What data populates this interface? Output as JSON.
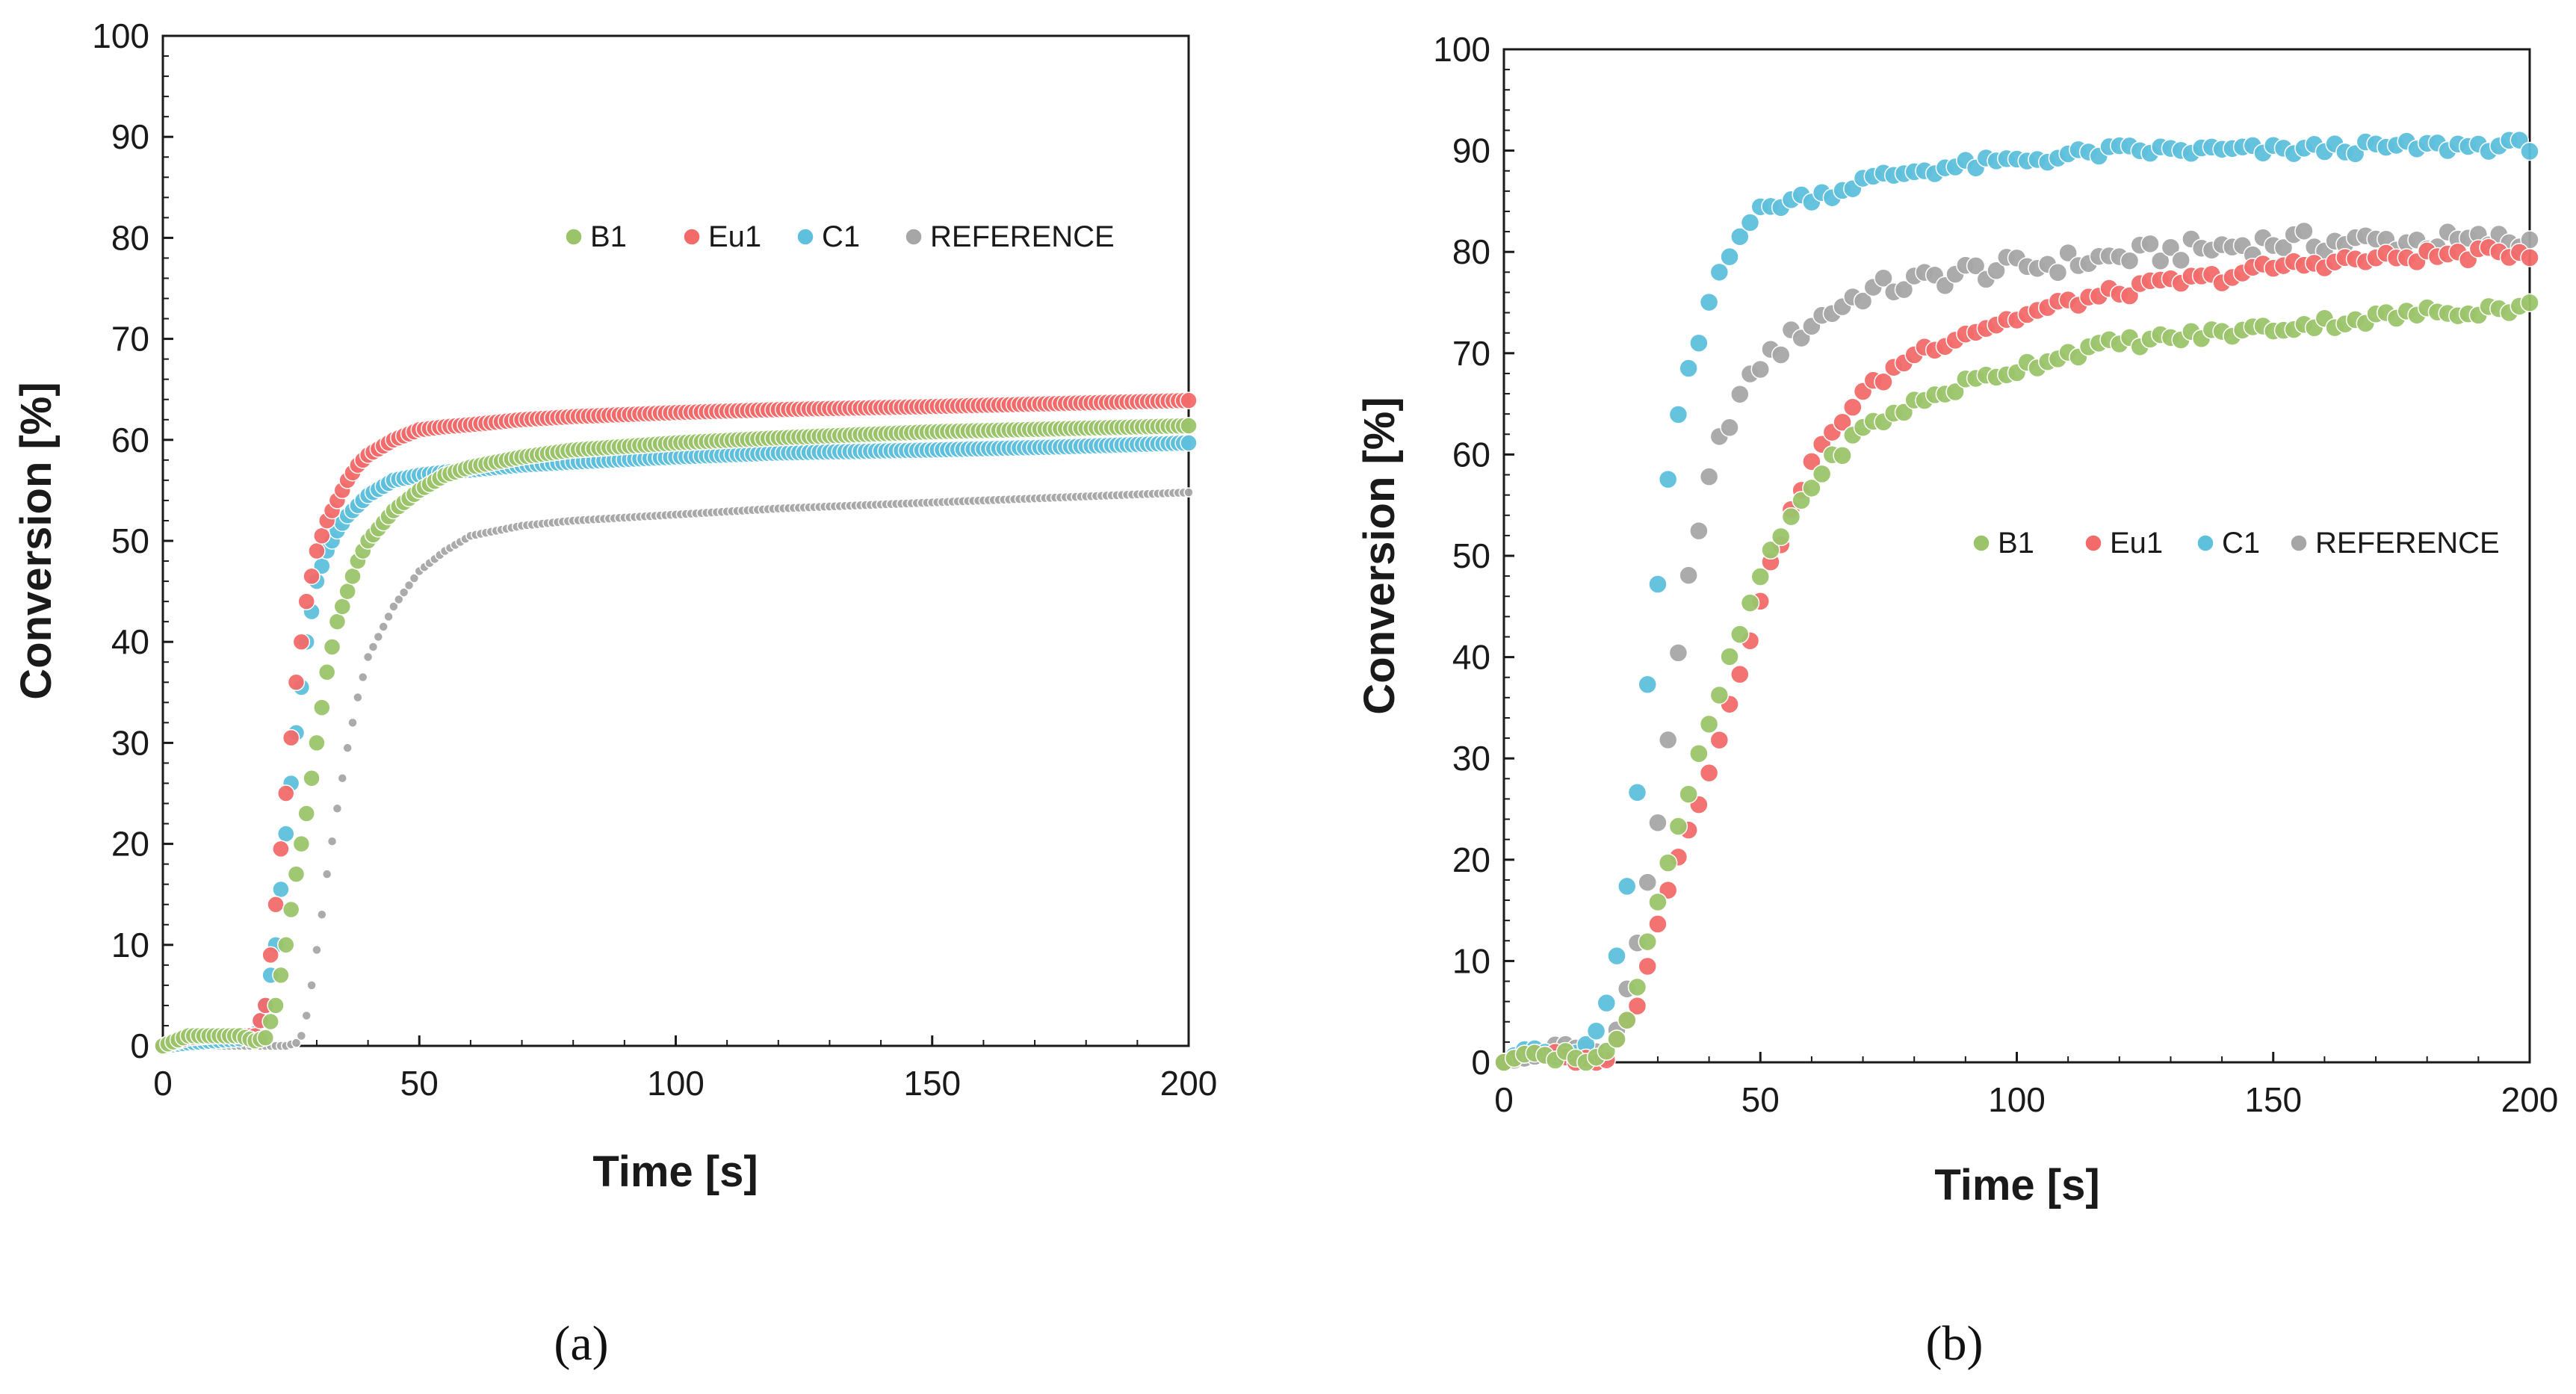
{
  "colors": {
    "B1": "#9bc46a",
    "Eu1": "#f26a6a",
    "C1": "#5ec0dc",
    "REFERENCE": "#a6a6a6",
    "axis": "#1a1a1a"
  },
  "chart_data": [
    {
      "type": "scatter",
      "panel_label": "(a)",
      "title": "",
      "xlabel": "Time [s]",
      "ylabel": "Conversion [%]",
      "xlim": [
        0,
        200
      ],
      "ylim": [
        0,
        100
      ],
      "xticks": [
        0,
        50,
        100,
        150,
        200
      ],
      "yticks": [
        0,
        10,
        20,
        30,
        40,
        50,
        60,
        70,
        80,
        90,
        100
      ],
      "x_tick_labels": [
        "0",
        "50",
        "100",
        "150",
        "200"
      ],
      "y_tick_labels": [
        "0",
        "10",
        "20",
        "30",
        "40",
        "50",
        "60",
        "70",
        "80",
        "90",
        "100"
      ],
      "legend": {
        "placement": "top-right",
        "entries": [
          "B1",
          "Eu1",
          "C1",
          "REFERENCE"
        ]
      },
      "series": [
        {
          "name": "B1",
          "x": [
            0,
            5,
            10,
            15,
            18,
            20,
            22,
            24,
            26,
            28,
            30,
            32,
            34,
            36,
            38,
            40,
            45,
            50,
            55,
            60,
            70,
            80,
            100,
            120,
            150,
            175,
            200
          ],
          "y": [
            0,
            1,
            1,
            1,
            0.5,
            0.8,
            4,
            10,
            17,
            23,
            30,
            37,
            42,
            45,
            48,
            50,
            53,
            55,
            56.5,
            57.3,
            58.3,
            59,
            59.7,
            60.2,
            60.8,
            61.1,
            61.4
          ]
        },
        {
          "name": "Eu1",
          "x": [
            0,
            5,
            10,
            15,
            18,
            20,
            22,
            24,
            26,
            28,
            30,
            32,
            34,
            36,
            38,
            40,
            45,
            50,
            55,
            60,
            70,
            80,
            100,
            120,
            150,
            175,
            200
          ],
          "y": [
            0,
            0.8,
            1,
            1,
            1,
            4,
            14,
            25,
            36,
            44,
            49,
            52,
            54,
            56,
            57.5,
            58.5,
            60,
            61,
            61.3,
            61.5,
            62,
            62.3,
            62.7,
            63,
            63.3,
            63.6,
            63.9
          ]
        },
        {
          "name": "C1",
          "x": [
            0,
            5,
            10,
            15,
            18,
            20,
            22,
            24,
            26,
            28,
            30,
            32,
            34,
            36,
            38,
            40,
            45,
            50,
            55,
            60,
            70,
            80,
            100,
            120,
            150,
            175,
            200
          ],
          "y": [
            0,
            0.3,
            0.5,
            0.7,
            1.2,
            4,
            10,
            21,
            31,
            40,
            46,
            49,
            51,
            52.5,
            53.5,
            54.5,
            56,
            56.5,
            56.8,
            57,
            57.5,
            57.8,
            58.3,
            58.7,
            59,
            59.3,
            59.7
          ]
        },
        {
          "name": "REFERENCE",
          "x": [
            0,
            5,
            10,
            15,
            20,
            24,
            26,
            27,
            28,
            29,
            30,
            31,
            32,
            34,
            36,
            38,
            40,
            45,
            50,
            55,
            60,
            70,
            80,
            100,
            120,
            150,
            175,
            200
          ],
          "y": [
            0,
            0,
            0,
            0,
            0,
            0,
            0.3,
            1,
            3,
            6,
            9.5,
            13,
            17,
            23.5,
            29.5,
            34.5,
            38.5,
            43.5,
            47,
            49,
            50.5,
            51.5,
            52,
            52.6,
            53.2,
            53.8,
            54.3,
            54.8
          ]
        }
      ]
    },
    {
      "type": "scatter",
      "panel_label": "(b)",
      "title": "",
      "xlabel": "Time [s]",
      "ylabel": "Conversion [%]",
      "xlim": [
        0,
        200
      ],
      "ylim": [
        0,
        100
      ],
      "xticks": [
        0,
        50,
        100,
        150,
        200
      ],
      "yticks": [
        0,
        10,
        20,
        30,
        40,
        50,
        60,
        70,
        80,
        90,
        100
      ],
      "x_tick_labels": [
        "0",
        "50",
        "100",
        "150",
        "200"
      ],
      "y_tick_labels": [
        "0",
        "10",
        "20",
        "30",
        "40",
        "50",
        "60",
        "70",
        "80",
        "90",
        "100"
      ],
      "legend": {
        "placement": "center-right",
        "entries": [
          "B1",
          "Eu1",
          "C1",
          "REFERENCE"
        ]
      },
      "series": [
        {
          "name": "B1",
          "x": [
            0,
            5,
            10,
            15,
            18,
            20,
            22,
            24,
            26,
            28,
            30,
            32,
            35,
            38,
            40,
            43,
            45,
            48,
            50,
            55,
            60,
            65,
            70,
            80,
            90,
            100,
            110,
            120,
            130,
            140,
            150,
            160,
            170,
            180,
            190,
            200
          ],
          "y": [
            0,
            1,
            0.5,
            0.5,
            0.5,
            1,
            2,
            4,
            8,
            12,
            16,
            20,
            25,
            30,
            33,
            38,
            41,
            45,
            48,
            53,
            57,
            60,
            62.5,
            65,
            67,
            68.5,
            70,
            71,
            71.5,
            72,
            72.5,
            73,
            73.5,
            74,
            74.3,
            74.6
          ]
        },
        {
          "name": "Eu1",
          "x": [
            0,
            5,
            10,
            15,
            18,
            20,
            22,
            24,
            26,
            28,
            30,
            32,
            35,
            38,
            40,
            43,
            45,
            48,
            50,
            55,
            60,
            65,
            70,
            80,
            90,
            100,
            110,
            120,
            130,
            140,
            150,
            160,
            170,
            180,
            190,
            200
          ],
          "y": [
            0,
            1,
            0.5,
            0,
            0,
            0.5,
            2,
            4,
            6,
            10,
            14,
            17,
            22,
            26,
            29,
            33,
            37,
            42,
            46,
            53,
            59,
            63,
            66,
            70,
            72,
            73.5,
            75,
            76,
            77,
            77.5,
            78.5,
            79,
            79.3,
            79.6,
            79.8,
            80
          ]
        },
        {
          "name": "C1",
          "x": [
            0,
            3,
            5,
            8,
            10,
            12,
            15,
            18,
            20,
            22,
            24,
            26,
            28,
            30,
            32,
            34,
            36,
            38,
            40,
            42,
            44,
            46,
            48,
            50,
            55,
            60,
            65,
            70,
            75,
            80,
            90,
            100,
            110,
            120,
            130,
            140,
            150,
            160,
            170,
            180,
            190,
            200
          ],
          "y": [
            0,
            1,
            1.5,
            1,
            0.5,
            0.5,
            1,
            3,
            6,
            10,
            17,
            27,
            37,
            47,
            57,
            64,
            68,
            71,
            75,
            78,
            80,
            82,
            83,
            84,
            85,
            85.5,
            86,
            87,
            87.5,
            88,
            88.5,
            89,
            89.5,
            90,
            90,
            90,
            90,
            90.2,
            90.3,
            90.4,
            90.5,
            90.5
          ]
        },
        {
          "name": "REFERENCE",
          "x": [
            0,
            5,
            10,
            15,
            18,
            20,
            22,
            24,
            26,
            28,
            30,
            32,
            34,
            36,
            38,
            40,
            42,
            45,
            48,
            50,
            55,
            60,
            65,
            70,
            75,
            80,
            90,
            100,
            110,
            120,
            130,
            140,
            150,
            160,
            170,
            180,
            190,
            200
          ],
          "y": [
            0,
            0.5,
            1,
            1.5,
            1,
            1.5,
            3,
            7,
            12,
            17,
            24,
            32,
            41,
            47,
            52,
            57,
            61,
            65,
            67,
            69,
            71,
            73,
            74.5,
            76,
            76.5,
            77,
            78,
            78.5,
            79,
            79.5,
            80,
            80.5,
            81,
            81,
            81,
            81,
            81,
            81
          ]
        }
      ]
    }
  ]
}
